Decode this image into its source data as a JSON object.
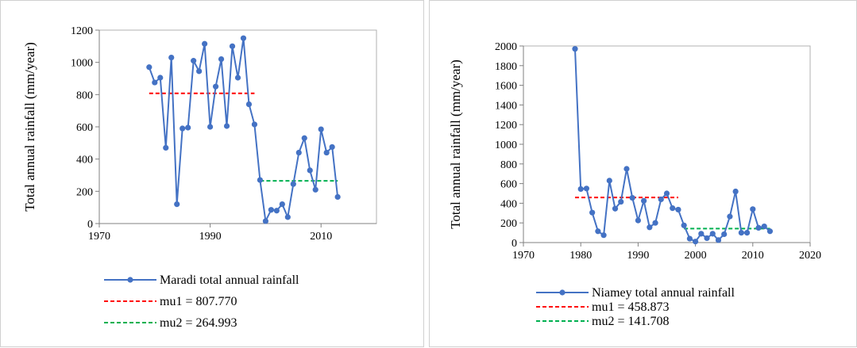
{
  "chart_data": [
    {
      "type": "line",
      "ylabel": "Total annual rainfall (mm/year)",
      "xlabel": "",
      "xlim": [
        1970,
        2020
      ],
      "ylim": [
        0,
        1200
      ],
      "xticks": [
        "1970",
        "1990",
        "2010"
      ],
      "xtick_values": [
        1970,
        1990,
        2010
      ],
      "yticks": [
        "0",
        "200",
        "400",
        "600",
        "800",
        "1000",
        "1200"
      ],
      "ytick_values": [
        0,
        200,
        400,
        600,
        800,
        1000,
        1200
      ],
      "grid": false,
      "legend_position": "bottom",
      "colors": {
        "series": "#4472c4",
        "mu1": "#ff0000",
        "mu2": "#00b050"
      },
      "series": [
        {
          "name": "Maradi total annual rainfall",
          "x": [
            1979,
            1980,
            1981,
            1982,
            1983,
            1984,
            1985,
            1986,
            1987,
            1988,
            1989,
            1990,
            1991,
            1992,
            1993,
            1994,
            1995,
            1996,
            1997,
            1998,
            1999,
            2000,
            2001,
            2002,
            2003,
            2004,
            2005,
            2006,
            2007,
            2008,
            2009,
            2010,
            2011,
            2012,
            2013
          ],
          "values": [
            970,
            875,
            905,
            470,
            1030,
            120,
            590,
            595,
            1010,
            945,
            1115,
            600,
            850,
            1020,
            605,
            1100,
            905,
            1150,
            740,
            615,
            270,
            15,
            85,
            80,
            120,
            40,
            245,
            440,
            530,
            330,
            210,
            585,
            440,
            475,
            165
          ]
        }
      ],
      "reference_lines": [
        {
          "name": "mu1 = 807.770",
          "x_start": 1979,
          "x_end": 1998,
          "y": 807.77
        },
        {
          "name": "mu2 = 264.993",
          "x_start": 1999,
          "x_end": 2013,
          "y": 264.993
        }
      ]
    },
    {
      "type": "line",
      "ylabel": "Total annual rainfall (mm/year)",
      "xlabel": "",
      "xlim": [
        1970,
        2020
      ],
      "ylim": [
        0,
        2000
      ],
      "xticks": [
        "1970",
        "1980",
        "1990",
        "2000",
        "2010",
        "2020"
      ],
      "xtick_values": [
        1970,
        1980,
        1990,
        2000,
        2010,
        2020
      ],
      "yticks": [
        "0",
        "200",
        "400",
        "600",
        "800",
        "1000",
        "1200",
        "1400",
        "1600",
        "1800",
        "2000"
      ],
      "ytick_values": [
        0,
        200,
        400,
        600,
        800,
        1000,
        1200,
        1400,
        1600,
        1800,
        2000
      ],
      "grid": false,
      "legend_position": "bottom",
      "colors": {
        "series": "#4472c4",
        "mu1": "#ff0000",
        "mu2": "#00b050"
      },
      "series": [
        {
          "name": "Niamey total annual rainfall",
          "x": [
            1979,
            1980,
            1981,
            1982,
            1983,
            1984,
            1985,
            1986,
            1987,
            1988,
            1989,
            1990,
            1991,
            1992,
            1993,
            1994,
            1995,
            1996,
            1997,
            1998,
            1999,
            2000,
            2001,
            2002,
            2003,
            2004,
            2005,
            2006,
            2007,
            2008,
            2009,
            2010,
            2011,
            2012,
            2013
          ],
          "values": [
            1970,
            545,
            550,
            305,
            115,
            75,
            630,
            345,
            415,
            750,
            455,
            225,
            425,
            155,
            200,
            440,
            500,
            350,
            335,
            175,
            40,
            10,
            90,
            45,
            90,
            25,
            85,
            265,
            520,
            100,
            100,
            340,
            150,
            165,
            115
          ]
        }
      ],
      "reference_lines": [
        {
          "name": "mu1 = 458.873",
          "x_start": 1979,
          "x_end": 1997,
          "y": 458.873
        },
        {
          "name": "mu2 = 141.708",
          "x_start": 1998,
          "x_end": 2013,
          "y": 141.708
        }
      ]
    }
  ]
}
